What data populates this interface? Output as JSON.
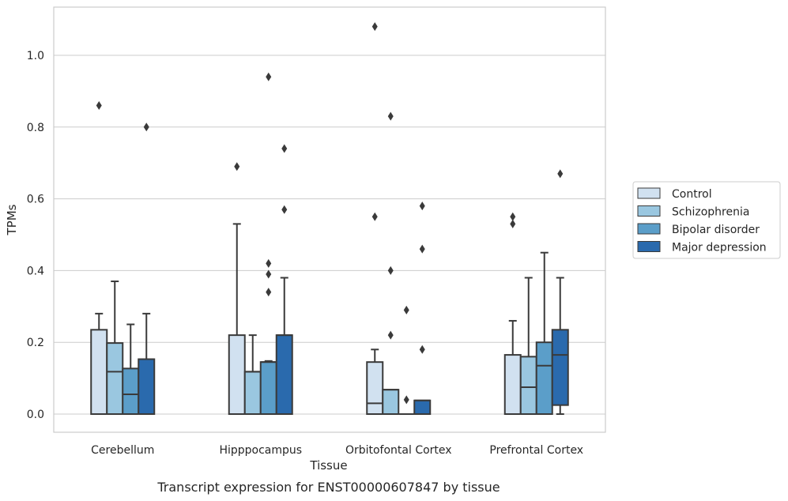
{
  "chart_data": {
    "type": "boxplot",
    "title": "",
    "caption": "Transcript expression for ENST00000607847 by tissue",
    "xlabel": "Tissue",
    "ylabel": "TPMs",
    "ylim": [
      -0.05,
      1.14
    ],
    "yticks": [
      0.0,
      0.2,
      0.4,
      0.6,
      0.8,
      1.0
    ],
    "ytick_labels": [
      "0.0",
      "0.2",
      "0.4",
      "0.6",
      "0.8",
      "1.0"
    ],
    "grid": "horizontal",
    "legend_position": "right",
    "categories": [
      "Cerebellum",
      "Hipppocampus",
      "Orbitofontal Cortex",
      "Prefrontal Cortex"
    ],
    "series": [
      {
        "name": "Control",
        "color": "#d1e1f0",
        "boxes": [
          {
            "q1": 0.0,
            "median": 0.0,
            "q3": 0.235,
            "whisker_low": 0.0,
            "whisker_high": 0.28,
            "outliers": [
              0.86
            ]
          },
          {
            "q1": 0.0,
            "median": 0.0,
            "q3": 0.22,
            "whisker_low": 0.0,
            "whisker_high": 0.53,
            "outliers": [
              0.69
            ]
          },
          {
            "q1": 0.0,
            "median": 0.03,
            "q3": 0.145,
            "whisker_low": 0.0,
            "whisker_high": 0.18,
            "outliers": [
              0.55,
              1.08
            ]
          },
          {
            "q1": 0.0,
            "median": 0.0,
            "q3": 0.165,
            "whisker_low": 0.0,
            "whisker_high": 0.26,
            "outliers": [
              0.53,
              0.55
            ]
          }
        ]
      },
      {
        "name": "Schizophrenia",
        "color": "#9ac7e0",
        "boxes": [
          {
            "q1": 0.0,
            "median": 0.118,
            "q3": 0.198,
            "whisker_low": 0.0,
            "whisker_high": 0.37,
            "outliers": []
          },
          {
            "q1": 0.0,
            "median": 0.118,
            "q3": 0.118,
            "whisker_low": 0.0,
            "whisker_high": 0.22,
            "outliers": []
          },
          {
            "q1": 0.0,
            "median": 0.068,
            "q3": 0.068,
            "whisker_low": 0.0,
            "whisker_high": 0.068,
            "outliers": [
              0.22,
              0.4,
              0.83
            ]
          },
          {
            "q1": 0.0,
            "median": 0.075,
            "q3": 0.16,
            "whisker_low": 0.0,
            "whisker_high": 0.38,
            "outliers": []
          }
        ]
      },
      {
        "name": "Bipolar disorder",
        "color": "#5b9ec9",
        "boxes": [
          {
            "q1": 0.0,
            "median": 0.055,
            "q3": 0.127,
            "whisker_low": 0.0,
            "whisker_high": 0.25,
            "outliers": []
          },
          {
            "q1": 0.0,
            "median": 0.145,
            "q3": 0.145,
            "whisker_low": 0.0,
            "whisker_high": 0.148,
            "outliers": [
              0.34,
              0.39,
              0.42,
              0.94
            ]
          },
          {
            "q1": 0.0,
            "median": 0.0,
            "q3": 0.0,
            "whisker_low": 0.0,
            "whisker_high": 0.0,
            "outliers": [
              0.04,
              0.29
            ]
          },
          {
            "q1": 0.0,
            "median": 0.135,
            "q3": 0.2,
            "whisker_low": 0.0,
            "whisker_high": 0.45,
            "outliers": []
          }
        ]
      },
      {
        "name": "Major depression",
        "color": "#2a6aad",
        "boxes": [
          {
            "q1": 0.0,
            "median": 0.153,
            "q3": 0.153,
            "whisker_low": 0.0,
            "whisker_high": 0.28,
            "outliers": [
              0.8
            ]
          },
          {
            "q1": 0.0,
            "median": 0.22,
            "q3": 0.22,
            "whisker_low": 0.0,
            "whisker_high": 0.38,
            "outliers": [
              0.57,
              0.74
            ]
          },
          {
            "q1": 0.0,
            "median": 0.038,
            "q3": 0.038,
            "whisker_low": 0.0,
            "whisker_high": 0.038,
            "outliers": [
              0.18,
              0.46,
              0.58
            ]
          },
          {
            "q1": 0.025,
            "median": 0.165,
            "q3": 0.235,
            "whisker_low": 0.0,
            "whisker_high": 0.38,
            "outliers": [
              0.67
            ]
          }
        ]
      }
    ]
  }
}
